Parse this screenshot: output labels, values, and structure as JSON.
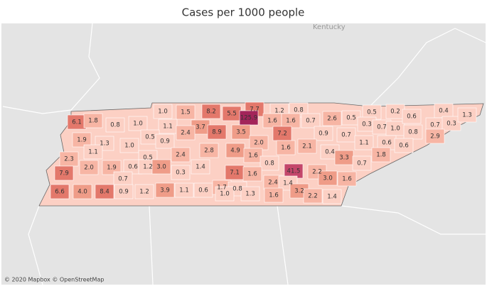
{
  "title": "Cases per 1000 people",
  "map_label": "Kentucky",
  "attribution": "© 2020 Mapbox © OpenStreetMap",
  "counties": {
    "values": [
      6.1,
      1.8,
      0.8,
      1,
      1,
      1.5,
      8.2,
      5.5,
      7.7,
      125.9,
      1.2,
      0.8,
      1.1,
      3.7,
      8.9,
      3.5,
      1.6,
      1.6,
      0.7,
      2.6,
      0.5,
      0.5,
      0.3,
      0.7,
      0.2,
      1,
      0.6,
      0.8,
      0.4,
      0.7,
      0.3,
      1.3,
      2.9,
      1.9,
      1.3,
      1,
      0.5,
      0.9,
      2.4,
      2,
      7.2,
      0.9,
      0.7,
      1.1,
      0.6,
      0.6,
      1.1,
      2.3,
      0.5,
      2.4,
      2.8,
      4.9,
      1.6,
      2.1,
      0.4,
      3.3,
      1.8,
      2,
      1.9,
      0.6,
      1.2,
      3,
      0.3,
      1.4,
      1.6,
      0.8,
      0.7,
      7.9,
      0.7,
      7.1,
      1.6,
      41.5,
      2.2,
      3,
      1.6,
      6.6,
      4,
      8.4,
      0.9,
      1.2,
      3.9,
      1.1,
      0.6,
      1.7,
      0.8,
      1,
      1.3,
      2.4,
      1.4,
      1.6,
      3.2,
      2.2,
      1.4
    ],
    "value_labels": [
      "6.1",
      "1.8",
      "0.8",
      "1.0",
      "1.0",
      "1.5",
      "8.2",
      "5.5",
      "7.7",
      "125.9",
      "1.2",
      "0.8",
      "1.1",
      "3.7",
      "8.9",
      "3.5",
      "1.6",
      "1.6",
      "0.7",
      "2.6",
      "0.5",
      "0.5",
      "0.3",
      "0.7",
      "0.2",
      "1.0",
      "0.6",
      "0.8",
      "0.4",
      "0.7",
      "0.3",
      "1.3",
      "2.9",
      "1.9",
      "1.3",
      "1.0",
      "0.5",
      "0.9",
      "2.4",
      "2.0",
      "7.2",
      "0.9",
      "0.7",
      "1.1",
      "0.6",
      "0.6",
      "1.1",
      "2.3",
      "0.5",
      "2.4",
      "2.8",
      "4.9",
      "1.6",
      "2.1",
      "0.4",
      "3.3",
      "1.8",
      "2.0",
      "1.9",
      "0.6",
      "1.2",
      "3.0",
      "0.3",
      "1.4",
      "1.6",
      "0.8",
      "0.7",
      "7.9",
      "0.7",
      "7.1",
      "1.6",
      "41.5",
      "2.2",
      "3.0",
      "1.6",
      "6.6",
      "4.0",
      "8.4",
      "0.9",
      "1.2",
      "3.9",
      "1.1",
      "0.6",
      "1.7",
      "0.8",
      "1.0",
      "1.3",
      "2.4",
      "1.4",
      "1.6",
      "3.2",
      "2.2",
      "1.4"
    ]
  }
}
